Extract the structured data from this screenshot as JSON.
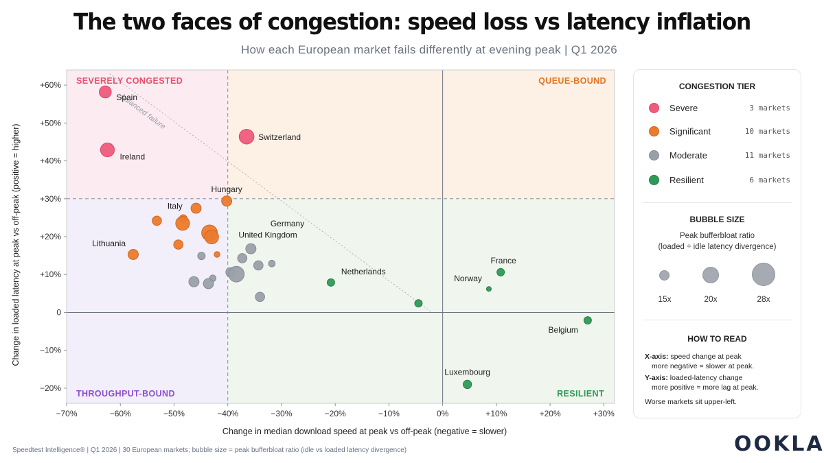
{
  "title": "The two faces of congestion: speed loss vs latency inflation",
  "subtitle": "How each European market fails differently at evening peak | Q1 2026",
  "chart_data": {
    "type": "scatter",
    "xlabel": "Change in median download speed at peak vs off-peak  (negative = slower)",
    "ylabel": "Change in loaded latency at peak vs off-peak (positive = higher)",
    "xlim": [
      -70,
      32
    ],
    "ylim": [
      -24,
      64
    ],
    "x_ticks": [
      -70,
      -60,
      -50,
      -40,
      -30,
      -20,
      -10,
      0,
      10,
      20,
      30
    ],
    "x_tick_labels": [
      "−70%",
      "−60%",
      "−50%",
      "−40%",
      "−30%",
      "−20%",
      "−10%",
      "0%",
      "+10%",
      "+20%",
      "+30%"
    ],
    "y_ticks": [
      60,
      50,
      40,
      30,
      20,
      10,
      0,
      -10,
      -20
    ],
    "y_tick_labels": [
      "+60%",
      "+50%",
      "+40%",
      "+30%",
      "+20%",
      "+10%",
      "0",
      "−10%",
      "−20%"
    ],
    "grid": false,
    "thresholds": {
      "x": -40,
      "y": 30
    },
    "quadrants": {
      "top_left": "SEVERELY CONGESTED",
      "top_right": "QUEUE-BOUND",
      "bottom_left": "THROUGHPUT-BOUND",
      "bottom_right": "RESILIENT"
    },
    "annotation": {
      "text": "balanced failure",
      "from": [
        -62,
        63
      ],
      "to": [
        -2,
        0
      ]
    },
    "tiers": [
      {
        "name": "Severe",
        "color": "#ef5b7c",
        "count_label": "3 markets"
      },
      {
        "name": "Significant",
        "color": "#eb7a2e",
        "count_label": "10 markets"
      },
      {
        "name": "Moderate",
        "color": "#9aa0a8",
        "count_label": "11 markets"
      },
      {
        "name": "Resilient",
        "color": "#2f9a55",
        "count_label": "6 markets"
      }
    ],
    "points": [
      {
        "label": "Spain",
        "x": -62.8,
        "y": 58.2,
        "ratio": 20,
        "tier": 0
      },
      {
        "label": "Ireland",
        "x": -62.4,
        "y": 42.9,
        "ratio": 22,
        "tier": 0
      },
      {
        "label": "Switzerland",
        "x": -36.5,
        "y": 46.4,
        "ratio": 23,
        "tier": 0
      },
      {
        "label": "Hungary",
        "x": -40.2,
        "y": 29.4,
        "ratio": 18,
        "tier": 1
      },
      {
        "label": "",
        "x": -45.9,
        "y": 27.5,
        "ratio": 18,
        "tier": 1
      },
      {
        "label": "Italy",
        "x": -48.3,
        "y": 24.8,
        "ratio": 15,
        "tier": 1
      },
      {
        "label": "",
        "x": -48.4,
        "y": 23.5,
        "ratio": 22,
        "tier": 1
      },
      {
        "label": "",
        "x": -53.2,
        "y": 24.2,
        "ratio": 17,
        "tier": 1
      },
      {
        "label": "",
        "x": -43.4,
        "y": 21.0,
        "ratio": 24,
        "tier": 1
      },
      {
        "label": "",
        "x": -43.0,
        "y": 19.9,
        "ratio": 22,
        "tier": 1
      },
      {
        "label": "",
        "x": -49.2,
        "y": 17.9,
        "ratio": 17,
        "tier": 1
      },
      {
        "label": "Lithuania",
        "x": -57.6,
        "y": 15.3,
        "ratio": 18,
        "tier": 1
      },
      {
        "label": "",
        "x": -42.0,
        "y": 15.3,
        "ratio": 13,
        "tier": 1
      },
      {
        "label": "United Kingdom",
        "x": -35.7,
        "y": 16.8,
        "ratio": 18,
        "tier": 2
      },
      {
        "label": "",
        "x": -37.3,
        "y": 14.3,
        "ratio": 17,
        "tier": 2
      },
      {
        "label": "",
        "x": -44.9,
        "y": 14.9,
        "ratio": 15,
        "tier": 2
      },
      {
        "label": "",
        "x": -34.3,
        "y": 12.4,
        "ratio": 17,
        "tier": 2
      },
      {
        "label": "Germany",
        "x": -31.8,
        "y": 12.9,
        "ratio": 14,
        "tier": 2
      },
      {
        "label": "",
        "x": -39.5,
        "y": 10.6,
        "ratio": 17,
        "tier": 2
      },
      {
        "label": "",
        "x": -38.4,
        "y": 10.1,
        "ratio": 24,
        "tier": 2
      },
      {
        "label": "",
        "x": -42.8,
        "y": 9.0,
        "ratio": 14,
        "tier": 2
      },
      {
        "label": "",
        "x": -43.6,
        "y": 7.6,
        "ratio": 18,
        "tier": 2
      },
      {
        "label": "",
        "x": -46.3,
        "y": 8.1,
        "ratio": 18,
        "tier": 2
      },
      {
        "label": "",
        "x": -34.0,
        "y": 4.1,
        "ratio": 17,
        "tier": 2
      },
      {
        "label": "Netherlands",
        "x": -20.8,
        "y": 7.9,
        "ratio": 15,
        "tier": 3
      },
      {
        "label": "",
        "x": -4.5,
        "y": 2.4,
        "ratio": 15,
        "tier": 3
      },
      {
        "label": "France",
        "x": 10.8,
        "y": 10.6,
        "ratio": 15,
        "tier": 3
      },
      {
        "label": "Norway",
        "x": 8.6,
        "y": 6.2,
        "ratio": 12,
        "tier": 3
      },
      {
        "label": "Belgium",
        "x": 27.0,
        "y": -2.1,
        "ratio": 15,
        "tier": 3
      },
      {
        "label": "Luxembourg",
        "x": 4.6,
        "y": -19.0,
        "ratio": 16,
        "tier": 3
      }
    ]
  },
  "legend": {
    "tier_heading": "CONGESTION TIER",
    "size_heading": "BUBBLE SIZE",
    "size_desc_line1": "Peak bufferbloat ratio",
    "size_desc_line2": "(loaded ÷ idle latency divergence)",
    "size_samples": [
      {
        "value": 15,
        "label": "15x"
      },
      {
        "value": 20,
        "label": "20x"
      },
      {
        "value": 28,
        "label": "28x"
      }
    ],
    "howto_heading": "HOW TO READ",
    "howto_x_key": "X-axis:",
    "howto_x_text": " speed change at peak",
    "howto_x_line2": "more negative = slower at peak.",
    "howto_y_key": "Y-axis:",
    "howto_y_text": " loaded-latency change",
    "howto_y_line2": "more positive = more lag at peak.",
    "howto_note": "Worse markets sit upper-left."
  },
  "footer": "Speedtest Intelligence®  |  Q1 2026  |  30 European markets; bubble size = peak bufferbloat ratio (idle vs loaded latency divergence)",
  "brand": "OOKLA"
}
